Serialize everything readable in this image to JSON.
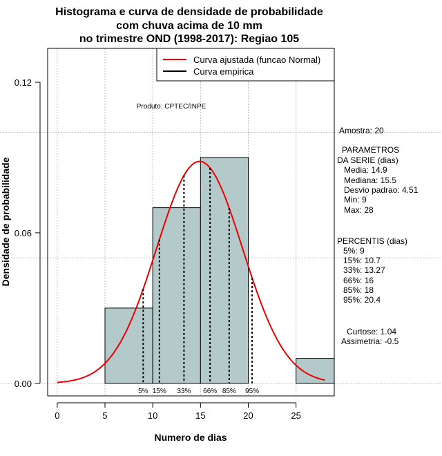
{
  "chart_data": {
    "type": "bar",
    "title_lines": [
      "Histograma e curva de densidade de probabilidade",
      "com chuva acima de 10 mm",
      "no trimestre OND (1998-2017): Regiao 105"
    ],
    "xlabel": "Numero de dias",
    "ylabel": "Densidade de probabilidade",
    "xlim": [
      -1,
      29
    ],
    "ylim": [
      -0.005,
      0.1335
    ],
    "xticks": [
      0,
      5,
      10,
      15,
      20,
      25
    ],
    "yticks": [
      0.0,
      0.06,
      0.12
    ],
    "ytick_labels": [
      "0.00",
      "0.06",
      "0.12"
    ],
    "grid": true,
    "bars": [
      {
        "x0": 5,
        "x1": 10,
        "density": 0.03
      },
      {
        "x0": 10,
        "x1": 15,
        "density": 0.07
      },
      {
        "x0": 15,
        "x1": 20,
        "density": 0.09
      },
      {
        "x0": 25,
        "x1": 30,
        "density": 0.01
      }
    ],
    "bar_color": "#b4c9c9",
    "normal_curve": {
      "mean": 14.9,
      "sd": 4.51,
      "x_from": 0,
      "x_to": 28,
      "color": "#ee0000"
    },
    "percentile_lines": [
      {
        "label": "5%",
        "x": 9
      },
      {
        "label": "15%",
        "x": 10.7
      },
      {
        "label": "33%",
        "x": 13.27
      },
      {
        "label": "66%",
        "x": 16
      },
      {
        "label": "85%",
        "x": 18
      },
      {
        "label": "95%",
        "x": 20.4
      }
    ],
    "legend": {
      "position": "top-right",
      "entries": [
        {
          "label": "Curva ajustada (funcao Normal)",
          "color": "#ee0000"
        },
        {
          "label": "Curva empirica",
          "color": "#000000"
        }
      ]
    },
    "annotation": "Produto: CPTEC/INPE"
  },
  "sidebar": {
    "amostra": "Amostra: 20",
    "parametros_title_1": "PARAMETROS",
    "parametros_title_2": "DA SERIE (dias)",
    "media": "Media: 14.9",
    "mediana": "Mediana: 15.5",
    "desvio": "Desvio padrao: 4.51",
    "min": "Min: 9",
    "max": "Max: 28",
    "percentis_title": "PERCENTIS (dias)",
    "p5": "5%: 9",
    "p15": "15%: 10.7",
    "p33": "33%: 13.27",
    "p66": "66%: 16",
    "p85": "85%: 18",
    "p95": "95%: 20.4",
    "curtose": "Curtose: 1.04",
    "assimetria": "Assimetria: -0.5"
  }
}
